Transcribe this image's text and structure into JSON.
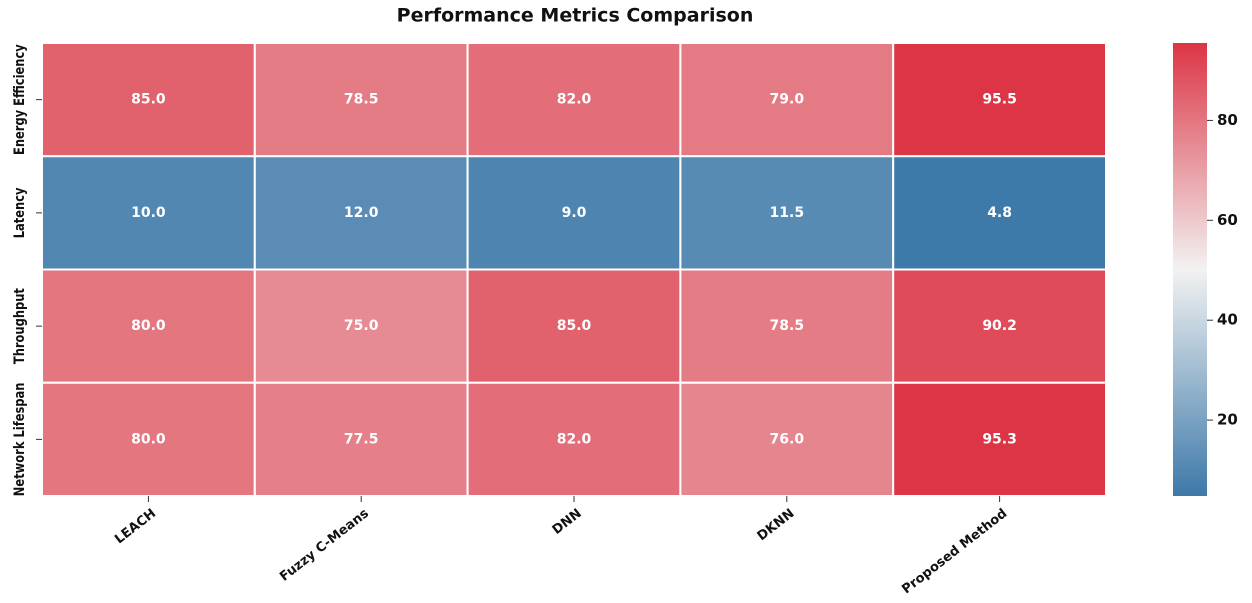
{
  "chart_data": {
    "type": "heatmap",
    "title": "Performance Metrics Comparison",
    "categories": [
      "LEACH",
      "Fuzzy C-Means",
      "DNN",
      "DKNN",
      "Proposed Method"
    ],
    "rows": [
      "Energy Efficiency",
      "Latency",
      "Throughput",
      "Network Lifespan"
    ],
    "values": [
      [
        85.0,
        78.5,
        82.0,
        79.0,
        95.5
      ],
      [
        10.0,
        12.0,
        9.0,
        11.5,
        4.8
      ],
      [
        80.0,
        75.0,
        85.0,
        78.5,
        90.2
      ],
      [
        80.0,
        77.5,
        82.0,
        76.0,
        95.3
      ]
    ],
    "value_labels": [
      [
        "85.0",
        "78.5",
        "82.0",
        "79.0",
        "95.5"
      ],
      [
        "10.0",
        "12.0",
        "9.0",
        "11.5",
        "4.8"
      ],
      [
        "80.0",
        "75.0",
        "85.0",
        "78.5",
        "90.2"
      ],
      [
        "80.0",
        "77.5",
        "82.0",
        "76.0",
        "95.3"
      ]
    ],
    "clim": [
      4.8,
      95.5
    ],
    "cticks": [
      20,
      40,
      60,
      80
    ],
    "colormap": [
      "#3d79a9",
      "#f2f2f2",
      "#dc3545"
    ]
  }
}
